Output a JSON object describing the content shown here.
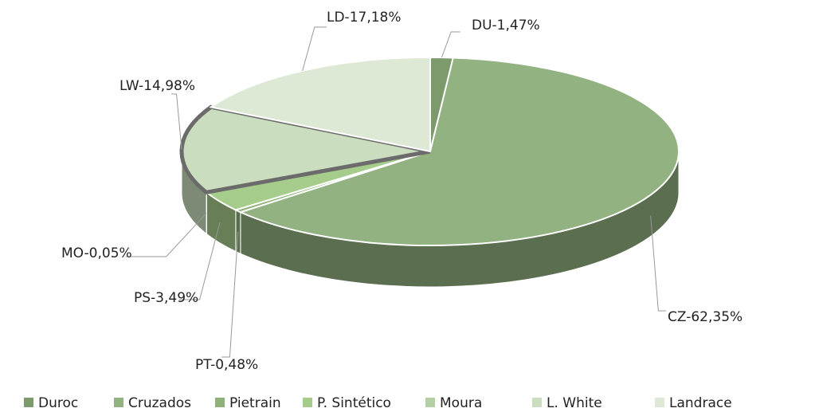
{
  "chart_data": {
    "type": "pie",
    "categories": [
      "Duroc",
      "Cruzados",
      "Pietrain",
      "P. Sintético",
      "Moura",
      "L. White",
      "Landrace"
    ],
    "values": [
      1.47,
      62.35,
      0.48,
      3.49,
      0.05,
      14.98,
      17.18
    ],
    "value_labels": [
      "DU-1,47%",
      "CZ-62,35%",
      "PT-0,48%",
      "PS-3,49%",
      "MO-0,05%",
      "LW-14,98%",
      "LD-17,18%"
    ],
    "colors": [
      "#7c9a6c",
      "#93b281",
      "#8fb27a",
      "#a6cc8c",
      "#b3cfa3",
      "#cadebf",
      "#dde9d5"
    ],
    "legend": "bottom"
  }
}
